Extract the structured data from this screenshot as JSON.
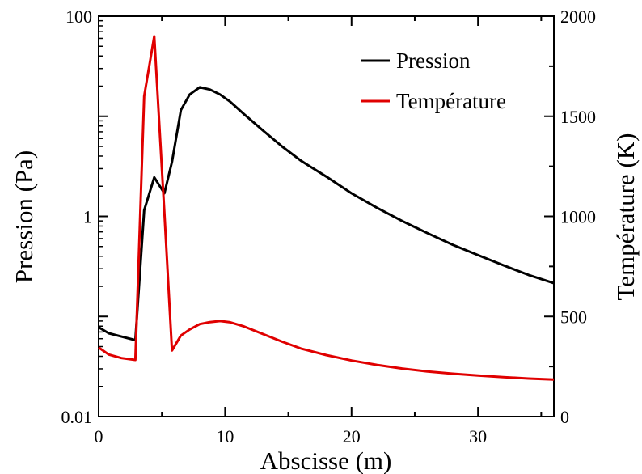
{
  "chart_data": {
    "type": "line",
    "xlabel": "Abscisse (m)",
    "ylabel_left": "Pression (Pa)",
    "ylabel_right": "Température (K)",
    "xlim": [
      0,
      36
    ],
    "ylim_left": [
      0.01,
      100
    ],
    "yscale_left": "log",
    "ylim_right": [
      0,
      2000
    ],
    "x_ticks": [
      0,
      10,
      20,
      30
    ],
    "x_tick_labels": [
      "0",
      "10",
      "20",
      "30"
    ],
    "y_left_ticks": [
      0.01,
      1,
      100
    ],
    "y_left_tick_labels": [
      "0.01",
      "1",
      "100"
    ],
    "y_right_ticks": [
      0,
      500,
      1000,
      1500,
      2000
    ],
    "y_right_tick_labels": [
      "0",
      "500",
      "1000",
      "1500",
      "2000"
    ],
    "grid": false,
    "legend_position": "top-right",
    "series": [
      {
        "name": "Pression",
        "axis": "left",
        "color": "#000000",
        "x": [
          0,
          0.8,
          1.8,
          2.9,
          3.6,
          4.4,
          5.2,
          5.8,
          6.5,
          7.2,
          8,
          8.8,
          9.6,
          10.4,
          11.5,
          13,
          14.5,
          16,
          18,
          20,
          22,
          24,
          26,
          28,
          30,
          32,
          34,
          36
        ],
        "y": [
          0.078,
          0.068,
          0.063,
          0.058,
          1.15,
          2.45,
          1.7,
          3.5,
          11.5,
          16.5,
          19.5,
          18.5,
          16.5,
          14,
          10.5,
          7.2,
          5.0,
          3.6,
          2.5,
          1.7,
          1.22,
          0.9,
          0.68,
          0.52,
          0.41,
          0.325,
          0.26,
          0.215
        ]
      },
      {
        "name": "Température",
        "axis": "right",
        "color": "#e00000",
        "x": [
          0,
          0.8,
          1.8,
          2.9,
          3.6,
          4.4,
          5.2,
          5.8,
          6.5,
          7.2,
          8,
          8.8,
          9.6,
          10.4,
          11.5,
          13,
          14.5,
          16,
          18,
          20,
          22,
          24,
          26,
          28,
          30,
          32,
          34,
          36
        ],
        "y": [
          345,
          310,
          292,
          283,
          1600,
          1900,
          1020,
          330,
          405,
          435,
          462,
          472,
          477,
          471,
          450,
          412,
          374,
          340,
          307,
          280,
          258,
          240,
          225,
          214,
          205,
          197,
          190,
          185
        ]
      }
    ]
  }
}
